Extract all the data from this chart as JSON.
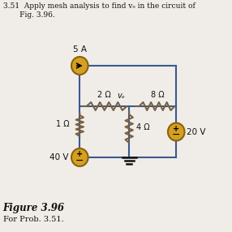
{
  "bg_color": "#f0ede8",
  "wire_color": "#3a5a8c",
  "res_color": "#7a6040",
  "src_color": "#D4A020",
  "src_edge": "#8B6010",
  "text_color": "#111111",
  "title_line1": "3.51  Apply mesh analysis to find vₒ in the circuit of",
  "title_line2": "       Fig. 3.96.",
  "fig_label": "Figure 3.96",
  "fig_sublabel": "For Prob. 3.51.",
  "lbl_5A": "5 A",
  "lbl_2ohm": "2 Ω",
  "lbl_8ohm": "8 Ω",
  "lbl_1ohm": "1 Ω",
  "lbl_4ohm": "4 Ω",
  "lbl_40V": "40 V",
  "lbl_20V": "20 V",
  "lbl_vo": "vₒ"
}
